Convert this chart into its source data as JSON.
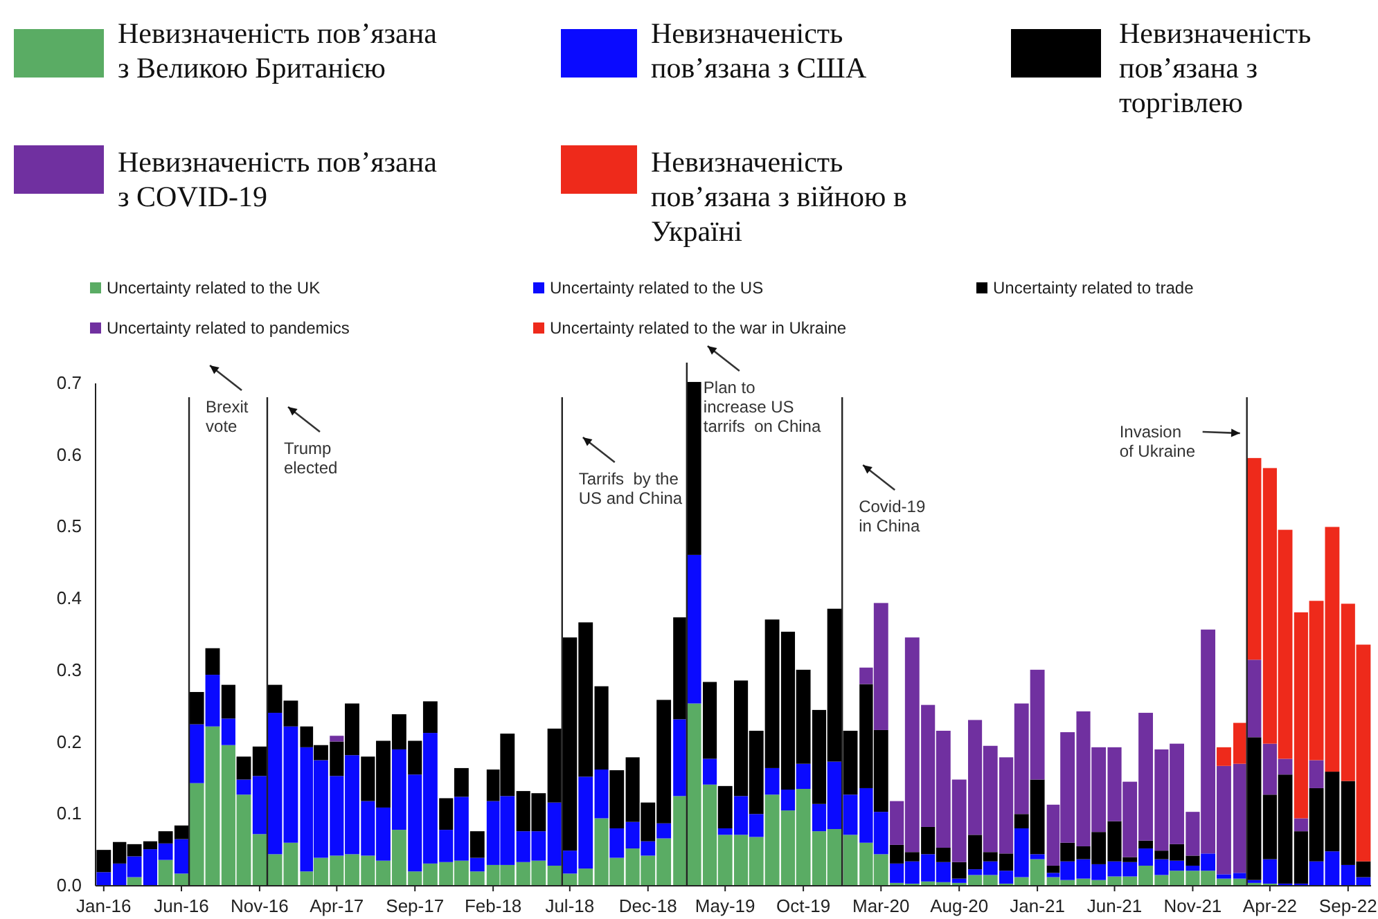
{
  "chart_data": {
    "type": "bar",
    "stacked": true,
    "legend": "top",
    "annotations": [
      "Невизначеність пов’язана\nз Великою Британією",
      "Невизначеність\nпов’язана з США",
      "Невизначеність\nпов’язана з\nторгівлею",
      "Невизначеність пов’язана\nз COVID-19",
      "Невизначеність\nпов’язана з війною в\nУкраїні"
    ],
    "x": [
      "2016-01",
      "2016-02",
      "2016-03",
      "2016-04",
      "2016-05",
      "2016-06",
      "2016-07",
      "2016-08",
      "2016-09",
      "2016-10",
      "2016-11",
      "2016-12",
      "2017-01",
      "2017-02",
      "2017-03",
      "2017-04",
      "2017-05",
      "2017-06",
      "2017-07",
      "2017-08",
      "2017-09",
      "2017-10",
      "2017-11",
      "2017-12",
      "2018-01",
      "2018-02",
      "2018-03",
      "2018-04",
      "2018-05",
      "2018-06",
      "2018-07",
      "2018-08",
      "2018-09",
      "2018-10",
      "2018-11",
      "2018-12",
      "2019-01",
      "2019-02",
      "2019-03",
      "2019-04",
      "2019-05",
      "2019-06",
      "2019-07",
      "2019-08",
      "2019-09",
      "2019-10",
      "2019-11",
      "2019-12",
      "2020-01",
      "2020-02",
      "2020-03",
      "2020-04",
      "2020-05",
      "2020-06",
      "2020-07",
      "2020-08",
      "2020-09",
      "2020-10",
      "2020-11",
      "2020-12",
      "2021-01",
      "2021-02",
      "2021-03",
      "2021-04",
      "2021-05",
      "2021-06",
      "2021-07",
      "2021-08",
      "2021-09",
      "2021-10",
      "2021-11",
      "2021-12",
      "2022-01",
      "2022-02",
      "2022-03",
      "2022-04",
      "2022-05",
      "2022-06",
      "2022-07",
      "2022-08",
      "2022-09",
      "2022-10"
    ],
    "xlim": [
      "2015-12-16",
      "2022-10-16"
    ],
    "xticks": [
      {
        "value": "2016-01",
        "label": "Jan-16"
      },
      {
        "value": "2016-06",
        "label": "Jun-16"
      },
      {
        "value": "2016-11",
        "label": "Nov-16"
      },
      {
        "value": "2017-04",
        "label": "Apr-17"
      },
      {
        "value": "2017-09",
        "label": "Sep-17"
      },
      {
        "value": "2018-02",
        "label": "Feb-18"
      },
      {
        "value": "2018-07",
        "label": "Jul-18"
      },
      {
        "value": "2018-12",
        "label": "Dec-18"
      },
      {
        "value": "2019-05",
        "label": "May-19"
      },
      {
        "value": "2019-10",
        "label": "Oct-19"
      },
      {
        "value": "2020-03",
        "label": "Mar-20"
      },
      {
        "value": "2020-08",
        "label": "Aug-20"
      },
      {
        "value": "2021-01",
        "label": "Jan-21"
      },
      {
        "value": "2021-06",
        "label": "Jun-21"
      },
      {
        "value": "2021-11",
        "label": "Nov-21"
      },
      {
        "value": "2022-04",
        "label": "Apr-22"
      },
      {
        "value": "2022-09",
        "label": "Sep-22"
      }
    ],
    "ylim": [
      0,
      0.7
    ],
    "yticks": [
      {
        "value": 0,
        "label": "0.0"
      },
      0.1,
      0.2,
      0.3,
      0.4,
      0.5,
      0.6,
      0.7
    ],
    "ref_lines": [
      {
        "axis": "x",
        "value": "2016-06-16",
        "label": "Brexit\nvote"
      },
      {
        "axis": "x",
        "value": "2016-11-16",
        "label": "Trump\nelected"
      },
      {
        "axis": "x",
        "value": "2018-06-16",
        "label": "Tarrifs  by the\nUS and China"
      },
      {
        "axis": "x",
        "value": "2019-02-15",
        "label": "Plan to\nincrease US\ntarrifs  on China"
      },
      {
        "axis": "x",
        "value": "2019-12-16",
        "label": "Covid-19\nin China"
      },
      {
        "axis": "x",
        "value": "2022-02-15",
        "label": "Invasion\nof Ukraine"
      }
    ],
    "series": [
      {
        "name": "Uncertainty related to the UK",
        "color": "#5aac64",
        "values": [
          0,
          0,
          0.012,
          0,
          0.036,
          0.017,
          0.143,
          0.222,
          0.196,
          0.127,
          0.072,
          0.044,
          0.06,
          0.02,
          0.039,
          0.042,
          0.044,
          0.042,
          0.035,
          0.078,
          0.02,
          0.031,
          0.033,
          0.035,
          0.02,
          0.029,
          0.029,
          0.033,
          0.035,
          0.028,
          0.017,
          0.024,
          0.094,
          0.039,
          0.052,
          0.042,
          0.066,
          0.125,
          0.254,
          0.141,
          0.071,
          0.071,
          0.068,
          0.127,
          0.105,
          0.135,
          0.076,
          0.079,
          0.071,
          0.06,
          0.044,
          0.004,
          0.003,
          0.006,
          0.005,
          0.004,
          0.015,
          0.015,
          0.003,
          0.012,
          0.037,
          0.012,
          0.008,
          0.01,
          0.008,
          0.013,
          0.013,
          0.028,
          0.015,
          0.021,
          0.021,
          0.021,
          0.01,
          0.01,
          0.004,
          0.003,
          null,
          0,
          0,
          0,
          0,
          0
        ]
      },
      {
        "name": "Uncertainty related to the US",
        "color": "#0a0aff",
        "values": [
          0.019,
          0.031,
          0.029,
          0.051,
          0.023,
          0.048,
          0.082,
          0.072,
          0.037,
          0.021,
          0.081,
          0.197,
          0.162,
          0.173,
          0.136,
          0.111,
          0.138,
          0.076,
          0.074,
          0.112,
          0.135,
          0.182,
          0.045,
          0.089,
          0.019,
          0.089,
          0.096,
          0.043,
          0.041,
          0.088,
          0.032,
          0.128,
          0.068,
          0.041,
          0.037,
          0.02,
          0.021,
          0.107,
          0.207,
          0.036,
          0.009,
          0.054,
          0.032,
          0.037,
          0.029,
          0.035,
          0.038,
          0.094,
          0.056,
          0.076,
          0.059,
          0.027,
          0.031,
          0.038,
          0.028,
          0.006,
          0.008,
          0.019,
          0.018,
          0.068,
          0.007,
          0.006,
          0.026,
          0.027,
          0.022,
          0.021,
          0.02,
          0.024,
          0.022,
          0.014,
          0.007,
          0.024,
          0.006,
          0.008,
          0.004,
          0.034,
          0.003,
          0.003,
          0.034,
          0.048,
          0.029,
          0.012
        ]
      },
      {
        "name": "Uncertainty related to trade",
        "color": "#000000",
        "values": [
          0.031,
          0.03,
          0.017,
          0.011,
          0.017,
          0.019,
          0.045,
          0.037,
          0.047,
          0.032,
          0.041,
          0.039,
          0.036,
          0.029,
          0.021,
          0.048,
          0.072,
          0.062,
          0.093,
          0.049,
          0.047,
          0.044,
          0.044,
          0.04,
          0.037,
          0.044,
          0.087,
          0.056,
          0.053,
          0.103,
          0.297,
          0.215,
          0.116,
          0.081,
          0.09,
          0.054,
          0.172,
          0.142,
          0.241,
          0.107,
          0.059,
          0.161,
          0.116,
          0.207,
          0.22,
          0.131,
          0.131,
          0.213,
          0.089,
          0.145,
          0.114,
          0.026,
          0.013,
          0.038,
          0.02,
          0.023,
          0.048,
          0.013,
          0.024,
          0.02,
          0.104,
          0.01,
          0.026,
          0.018,
          0.045,
          0.056,
          0.007,
          0.011,
          0.012,
          0.023,
          0.014,
          0,
          0,
          0,
          0.199,
          0.09,
          0.152,
          0.073,
          0.102,
          0.111,
          0.117,
          0.022
        ]
      },
      {
        "name": "Uncertainty related to pandemics",
        "color": "#7030a0",
        "values": [
          0,
          0,
          0,
          0,
          0,
          0,
          0,
          0,
          0,
          0,
          0,
          0,
          0,
          0,
          0,
          0.008,
          0,
          0,
          0,
          0,
          0,
          0,
          0,
          0,
          0,
          0,
          0,
          0,
          0,
          0,
          0,
          0,
          0,
          0,
          0,
          0,
          0,
          0,
          0,
          0,
          0,
          0,
          0,
          0,
          0,
          0,
          0,
          0,
          0,
          0.023,
          0.177,
          0.061,
          0.299,
          0.17,
          0.163,
          0.115,
          0.16,
          0.148,
          0.134,
          0.154,
          0.153,
          0.085,
          0.154,
          0.188,
          0.118,
          0.103,
          0.105,
          0.178,
          0.141,
          0.14,
          0.061,
          0.312,
          0.151,
          0.152,
          0.108,
          0.071,
          0.022,
          0.018,
          0.039,
          0,
          0,
          0
        ]
      },
      {
        "name": "Uncertainty related to the war in Ukraine",
        "color": "#ee2a1b",
        "values": [
          0,
          0,
          0,
          0,
          0,
          0,
          0,
          0,
          0,
          0,
          0,
          0,
          0,
          0,
          0,
          0,
          0,
          0,
          0,
          0,
          0,
          0,
          0,
          0,
          0,
          0,
          0,
          0,
          0,
          0,
          0,
          0,
          0,
          0,
          0,
          0,
          0,
          0,
          0,
          0,
          0,
          0,
          0,
          0,
          0,
          0,
          0,
          0,
          0,
          0,
          0,
          0,
          0,
          0,
          0,
          0,
          0,
          0,
          0,
          0,
          0,
          0,
          0,
          0,
          0,
          0,
          0,
          0,
          0,
          0,
          0,
          0,
          0.026,
          0.057,
          0.281,
          0.384,
          0.319,
          0.287,
          0.222,
          0.341,
          0.247,
          0.302
        ]
      }
    ]
  }
}
